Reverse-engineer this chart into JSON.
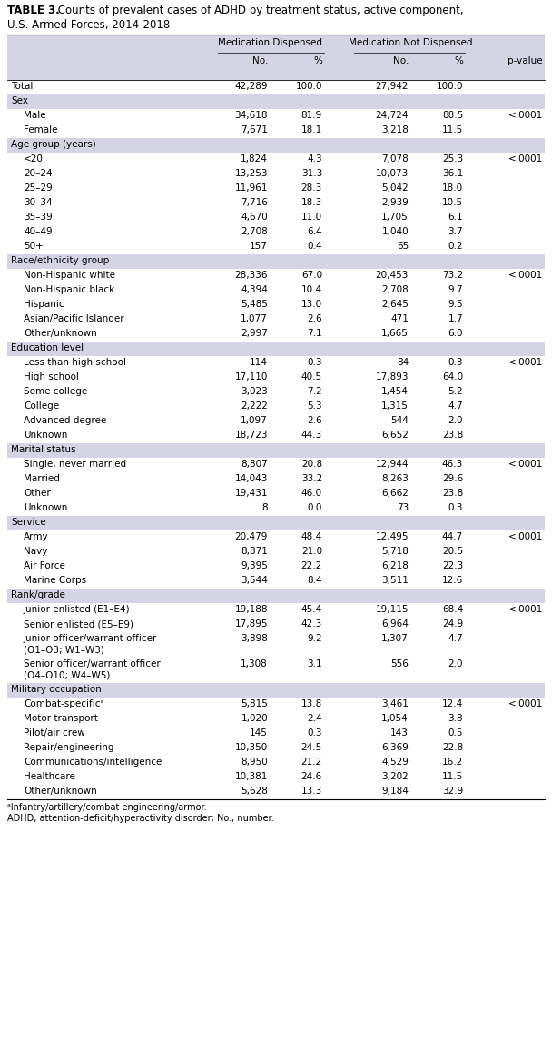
{
  "title_bold": "TABLE 3.",
  "title_rest": " Counts of prevalent cases of ADHD by treatment status, active component,",
  "title_line2": "U.S. Armed Forces, 2014-2018",
  "footnote1": "ᵃInfantry/artillery/combat engineering/armor.",
  "footnote2": "ADHD, attention-deficit/hyperactivity disorder; No., number.",
  "rows": [
    {
      "label": "Total",
      "indent": false,
      "is_section": false,
      "med_no": "42,289",
      "med_pct": "100.0",
      "nomed_no": "27,942",
      "nomed_pct": "100.0",
      "pvalue": ""
    },
    {
      "label": "Sex",
      "indent": false,
      "is_section": true,
      "med_no": "",
      "med_pct": "",
      "nomed_no": "",
      "nomed_pct": "",
      "pvalue": ""
    },
    {
      "label": "Male",
      "indent": true,
      "is_section": false,
      "med_no": "34,618",
      "med_pct": "81.9",
      "nomed_no": "24,724",
      "nomed_pct": "88.5",
      "pvalue": "<.0001"
    },
    {
      "label": "Female",
      "indent": true,
      "is_section": false,
      "med_no": "7,671",
      "med_pct": "18.1",
      "nomed_no": "3,218",
      "nomed_pct": "11.5",
      "pvalue": ""
    },
    {
      "label": "Age group (years)",
      "indent": false,
      "is_section": true,
      "med_no": "",
      "med_pct": "",
      "nomed_no": "",
      "nomed_pct": "",
      "pvalue": ""
    },
    {
      "label": "<20",
      "indent": true,
      "is_section": false,
      "med_no": "1,824",
      "med_pct": "4.3",
      "nomed_no": "7,078",
      "nomed_pct": "25.3",
      "pvalue": "<.0001"
    },
    {
      "label": "20–24",
      "indent": true,
      "is_section": false,
      "med_no": "13,253",
      "med_pct": "31.3",
      "nomed_no": "10,073",
      "nomed_pct": "36.1",
      "pvalue": ""
    },
    {
      "label": "25–29",
      "indent": true,
      "is_section": false,
      "med_no": "11,961",
      "med_pct": "28.3",
      "nomed_no": "5,042",
      "nomed_pct": "18.0",
      "pvalue": ""
    },
    {
      "label": "30–34",
      "indent": true,
      "is_section": false,
      "med_no": "7,716",
      "med_pct": "18.3",
      "nomed_no": "2,939",
      "nomed_pct": "10.5",
      "pvalue": ""
    },
    {
      "label": "35–39",
      "indent": true,
      "is_section": false,
      "med_no": "4,670",
      "med_pct": "11.0",
      "nomed_no": "1,705",
      "nomed_pct": "6.1",
      "pvalue": ""
    },
    {
      "label": "40–49",
      "indent": true,
      "is_section": false,
      "med_no": "2,708",
      "med_pct": "6.4",
      "nomed_no": "1,040",
      "nomed_pct": "3.7",
      "pvalue": ""
    },
    {
      "label": "50+",
      "indent": true,
      "is_section": false,
      "med_no": "157",
      "med_pct": "0.4",
      "nomed_no": "65",
      "nomed_pct": "0.2",
      "pvalue": ""
    },
    {
      "label": "Race/ethnicity group",
      "indent": false,
      "is_section": true,
      "med_no": "",
      "med_pct": "",
      "nomed_no": "",
      "nomed_pct": "",
      "pvalue": ""
    },
    {
      "label": "Non-Hispanic white",
      "indent": true,
      "is_section": false,
      "med_no": "28,336",
      "med_pct": "67.0",
      "nomed_no": "20,453",
      "nomed_pct": "73.2",
      "pvalue": "<.0001"
    },
    {
      "label": "Non-Hispanic black",
      "indent": true,
      "is_section": false,
      "med_no": "4,394",
      "med_pct": "10.4",
      "nomed_no": "2,708",
      "nomed_pct": "9.7",
      "pvalue": ""
    },
    {
      "label": "Hispanic",
      "indent": true,
      "is_section": false,
      "med_no": "5,485",
      "med_pct": "13.0",
      "nomed_no": "2,645",
      "nomed_pct": "9.5",
      "pvalue": ""
    },
    {
      "label": "Asian/Pacific Islander",
      "indent": true,
      "is_section": false,
      "med_no": "1,077",
      "med_pct": "2.6",
      "nomed_no": "471",
      "nomed_pct": "1.7",
      "pvalue": ""
    },
    {
      "label": "Other/unknown",
      "indent": true,
      "is_section": false,
      "med_no": "2,997",
      "med_pct": "7.1",
      "nomed_no": "1,665",
      "nomed_pct": "6.0",
      "pvalue": ""
    },
    {
      "label": "Education level",
      "indent": false,
      "is_section": true,
      "med_no": "",
      "med_pct": "",
      "nomed_no": "",
      "nomed_pct": "",
      "pvalue": ""
    },
    {
      "label": "Less than high school",
      "indent": true,
      "is_section": false,
      "med_no": "114",
      "med_pct": "0.3",
      "nomed_no": "84",
      "nomed_pct": "0.3",
      "pvalue": "<.0001"
    },
    {
      "label": "High school",
      "indent": true,
      "is_section": false,
      "med_no": "17,110",
      "med_pct": "40.5",
      "nomed_no": "17,893",
      "nomed_pct": "64.0",
      "pvalue": ""
    },
    {
      "label": "Some college",
      "indent": true,
      "is_section": false,
      "med_no": "3,023",
      "med_pct": "7.2",
      "nomed_no": "1,454",
      "nomed_pct": "5.2",
      "pvalue": ""
    },
    {
      "label": "College",
      "indent": true,
      "is_section": false,
      "med_no": "2,222",
      "med_pct": "5.3",
      "nomed_no": "1,315",
      "nomed_pct": "4.7",
      "pvalue": ""
    },
    {
      "label": "Advanced degree",
      "indent": true,
      "is_section": false,
      "med_no": "1,097",
      "med_pct": "2.6",
      "nomed_no": "544",
      "nomed_pct": "2.0",
      "pvalue": ""
    },
    {
      "label": "Unknown",
      "indent": true,
      "is_section": false,
      "med_no": "18,723",
      "med_pct": "44.3",
      "nomed_no": "6,652",
      "nomed_pct": "23.8",
      "pvalue": ""
    },
    {
      "label": "Marital status",
      "indent": false,
      "is_section": true,
      "med_no": "",
      "med_pct": "",
      "nomed_no": "",
      "nomed_pct": "",
      "pvalue": ""
    },
    {
      "label": "Single, never married",
      "indent": true,
      "is_section": false,
      "med_no": "8,807",
      "med_pct": "20.8",
      "nomed_no": "12,944",
      "nomed_pct": "46.3",
      "pvalue": "<.0001"
    },
    {
      "label": "Married",
      "indent": true,
      "is_section": false,
      "med_no": "14,043",
      "med_pct": "33.2",
      "nomed_no": "8,263",
      "nomed_pct": "29.6",
      "pvalue": ""
    },
    {
      "label": "Other",
      "indent": true,
      "is_section": false,
      "med_no": "19,431",
      "med_pct": "46.0",
      "nomed_no": "6,662",
      "nomed_pct": "23.8",
      "pvalue": ""
    },
    {
      "label": "Unknown",
      "indent": true,
      "is_section": false,
      "med_no": "8",
      "med_pct": "0.0",
      "nomed_no": "73",
      "nomed_pct": "0.3",
      "pvalue": ""
    },
    {
      "label": "Service",
      "indent": false,
      "is_section": true,
      "med_no": "",
      "med_pct": "",
      "nomed_no": "",
      "nomed_pct": "",
      "pvalue": ""
    },
    {
      "label": "Army",
      "indent": true,
      "is_section": false,
      "med_no": "20,479",
      "med_pct": "48.4",
      "nomed_no": "12,495",
      "nomed_pct": "44.7",
      "pvalue": "<.0001"
    },
    {
      "label": "Navy",
      "indent": true,
      "is_section": false,
      "med_no": "8,871",
      "med_pct": "21.0",
      "nomed_no": "5,718",
      "nomed_pct": "20.5",
      "pvalue": ""
    },
    {
      "label": "Air Force",
      "indent": true,
      "is_section": false,
      "med_no": "9,395",
      "med_pct": "22.2",
      "nomed_no": "6,218",
      "nomed_pct": "22.3",
      "pvalue": ""
    },
    {
      "label": "Marine Corps",
      "indent": true,
      "is_section": false,
      "med_no": "3,544",
      "med_pct": "8.4",
      "nomed_no": "3,511",
      "nomed_pct": "12.6",
      "pvalue": ""
    },
    {
      "label": "Rank/grade",
      "indent": false,
      "is_section": true,
      "med_no": "",
      "med_pct": "",
      "nomed_no": "",
      "nomed_pct": "",
      "pvalue": ""
    },
    {
      "label": "Junior enlisted (E1–E4)",
      "indent": true,
      "is_section": false,
      "med_no": "19,188",
      "med_pct": "45.4",
      "nomed_no": "19,115",
      "nomed_pct": "68.4",
      "pvalue": "<.0001"
    },
    {
      "label": "Senior enlisted (E5–E9)",
      "indent": true,
      "is_section": false,
      "med_no": "17,895",
      "med_pct": "42.3",
      "nomed_no": "6,964",
      "nomed_pct": "24.9",
      "pvalue": ""
    },
    {
      "label": "Junior officer/warrant officer\n(O1–O3; W1–W3)",
      "indent": true,
      "is_section": false,
      "med_no": "3,898",
      "med_pct": "9.2",
      "nomed_no": "1,307",
      "nomed_pct": "4.7",
      "pvalue": ""
    },
    {
      "label": "Senior officer/warrant officer\n(O4–O10; W4–W5)",
      "indent": true,
      "is_section": false,
      "med_no": "1,308",
      "med_pct": "3.1",
      "nomed_no": "556",
      "nomed_pct": "2.0",
      "pvalue": ""
    },
    {
      "label": "Military occupation",
      "indent": false,
      "is_section": true,
      "med_no": "",
      "med_pct": "",
      "nomed_no": "",
      "nomed_pct": "",
      "pvalue": ""
    },
    {
      "label": "Combat-specificᵃ",
      "indent": true,
      "is_section": false,
      "med_no": "5,815",
      "med_pct": "13.8",
      "nomed_no": "3,461",
      "nomed_pct": "12.4",
      "pvalue": "<.0001"
    },
    {
      "label": "Motor transport",
      "indent": true,
      "is_section": false,
      "med_no": "1,020",
      "med_pct": "2.4",
      "nomed_no": "1,054",
      "nomed_pct": "3.8",
      "pvalue": ""
    },
    {
      "label": "Pilot/air crew",
      "indent": true,
      "is_section": false,
      "med_no": "145",
      "med_pct": "0.3",
      "nomed_no": "143",
      "nomed_pct": "0.5",
      "pvalue": ""
    },
    {
      "label": "Repair/engineering",
      "indent": true,
      "is_section": false,
      "med_no": "10,350",
      "med_pct": "24.5",
      "nomed_no": "6,369",
      "nomed_pct": "22.8",
      "pvalue": ""
    },
    {
      "label": "Communications/intelligence",
      "indent": true,
      "is_section": false,
      "med_no": "8,950",
      "med_pct": "21.2",
      "nomed_no": "4,529",
      "nomed_pct": "16.2",
      "pvalue": ""
    },
    {
      "label": "Healthcare",
      "indent": true,
      "is_section": false,
      "med_no": "10,381",
      "med_pct": "24.6",
      "nomed_no": "3,202",
      "nomed_pct": "11.5",
      "pvalue": ""
    },
    {
      "label": "Other/unknown",
      "indent": true,
      "is_section": false,
      "med_no": "5,628",
      "med_pct": "13.3",
      "nomed_no": "9,184",
      "nomed_pct": "32.9",
      "pvalue": ""
    }
  ],
  "bg_color": "#ffffff",
  "section_bg": "#d4d4e4",
  "header_bg": "#d4d4e4",
  "font_size": 7.5,
  "title_fontsize": 8.5
}
